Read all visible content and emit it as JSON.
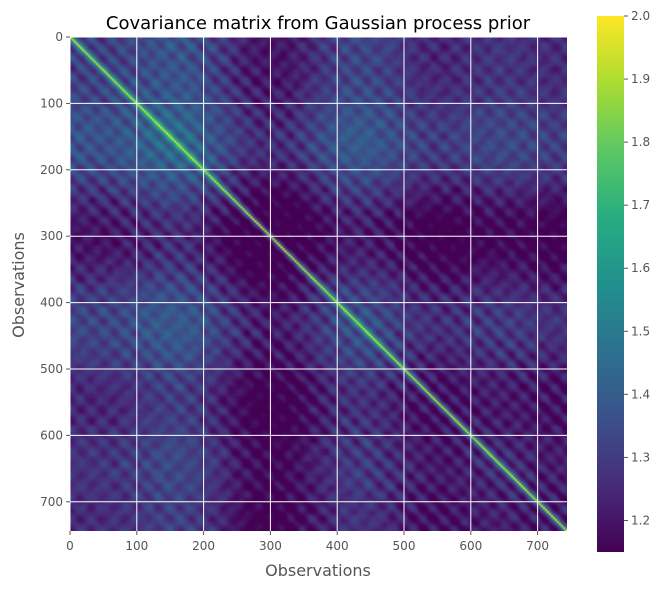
{
  "chart_data": {
    "type": "heatmap",
    "title": "Covariance matrix from Gaussian process prior",
    "xlabel": "Observations",
    "ylabel": "Observations",
    "n": 744,
    "xlim": [
      0,
      744
    ],
    "ylim": [
      744,
      0
    ],
    "xticks": [
      0,
      100,
      200,
      300,
      400,
      500,
      600,
      700
    ],
    "yticks": [
      0,
      100,
      200,
      300,
      400,
      500,
      600,
      700
    ],
    "colormap": "viridis",
    "colorbar": {
      "min": 1.15,
      "max": 2.0,
      "ticks": [
        1.2,
        1.3,
        1.4,
        1.5,
        1.6,
        1.7,
        1.8,
        1.9,
        2.0
      ],
      "tick_labels": [
        "1.2",
        "1.3",
        "1.4",
        "1.5",
        "1.6",
        "1.7",
        "1.8",
        "1.9",
        "2.0"
      ]
    },
    "diagonal_value": 2.0,
    "off_diagonal_range": [
      1.15,
      1.7
    ],
    "grid": true
  },
  "colors": {
    "axis_text": "#555555",
    "title_text": "#000000",
    "grid": "#ffffff"
  }
}
